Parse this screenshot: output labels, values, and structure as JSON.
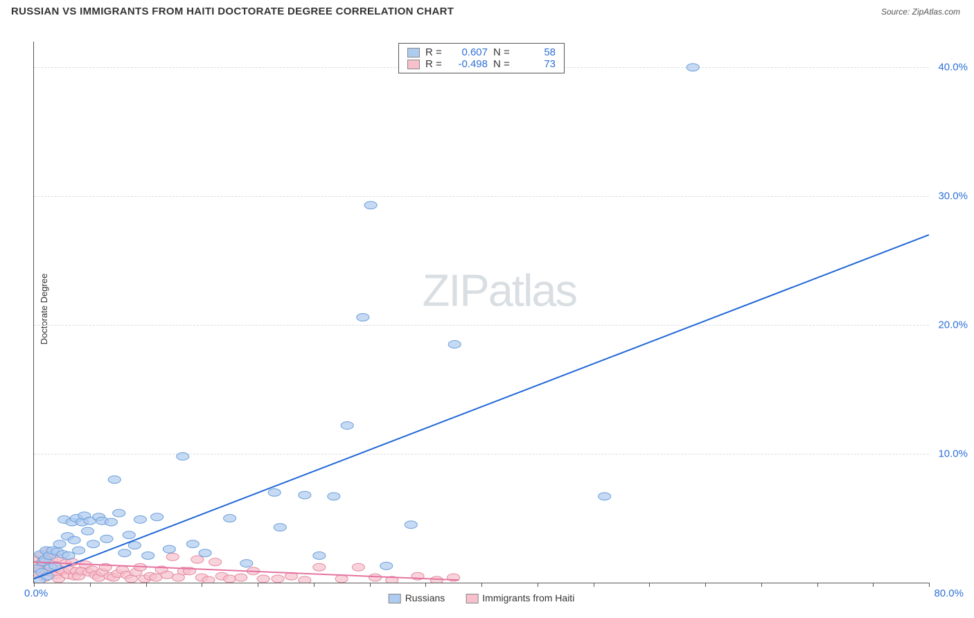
{
  "header": {
    "title": "RUSSIAN VS IMMIGRANTS FROM HAITI DOCTORATE DEGREE CORRELATION CHART",
    "source_prefix": "Source: ",
    "source_site": "ZipAtlas.com"
  },
  "axes": {
    "ylabel": "Doctorate Degree",
    "xlim": [
      0,
      80
    ],
    "ylim": [
      0,
      42
    ],
    "x_start_label": "0.0%",
    "x_end_label": "80.0%",
    "x_ticks": [
      0,
      5,
      10,
      15,
      20,
      25,
      30,
      35,
      40,
      45,
      50,
      55,
      60,
      65,
      70,
      75,
      80
    ],
    "y_gridlines": [
      {
        "val": 10,
        "label": "10.0%"
      },
      {
        "val": 20,
        "label": "20.0%"
      },
      {
        "val": 30,
        "label": "30.0%"
      },
      {
        "val": 40,
        "label": "40.0%"
      }
    ]
  },
  "watermark": {
    "zip": "ZIP",
    "atlas": "atlas"
  },
  "series": [
    {
      "name": "Russians",
      "color_fill": "#aecbf0",
      "color_stroke": "#6c9fd9",
      "trend_color": "#1f66d6",
      "R": "0.607",
      "N": "58",
      "trend": {
        "x1": 0,
        "y1": 0.3,
        "x2": 80,
        "y2": 27.0
      },
      "points": [
        [
          0.3,
          1.1
        ],
        [
          0.5,
          0.2
        ],
        [
          0.6,
          2.2
        ],
        [
          0.7,
          0.8
        ],
        [
          0.8,
          1.6
        ],
        [
          1.0,
          1.8
        ],
        [
          1.1,
          2.5
        ],
        [
          1.2,
          0.5
        ],
        [
          1.4,
          2.1
        ],
        [
          1.5,
          1.2
        ],
        [
          1.7,
          2.5
        ],
        [
          1.9,
          1.3
        ],
        [
          2.1,
          2.4
        ],
        [
          2.3,
          3.0
        ],
        [
          2.6,
          2.2
        ],
        [
          2.7,
          4.9
        ],
        [
          3.0,
          3.6
        ],
        [
          3.1,
          2.1
        ],
        [
          3.4,
          4.7
        ],
        [
          3.6,
          3.3
        ],
        [
          3.8,
          5.0
        ],
        [
          4.0,
          2.5
        ],
        [
          4.3,
          4.7
        ],
        [
          4.5,
          5.2
        ],
        [
          4.8,
          4.0
        ],
        [
          5.0,
          4.8
        ],
        [
          5.3,
          3.0
        ],
        [
          5.8,
          5.1
        ],
        [
          6.1,
          4.8
        ],
        [
          6.5,
          3.4
        ],
        [
          6.9,
          4.7
        ],
        [
          7.2,
          8.0
        ],
        [
          7.6,
          5.4
        ],
        [
          8.1,
          2.3
        ],
        [
          8.5,
          3.7
        ],
        [
          9.0,
          2.9
        ],
        [
          9.5,
          4.9
        ],
        [
          10.2,
          2.1
        ],
        [
          11.0,
          5.1
        ],
        [
          12.1,
          2.6
        ],
        [
          13.3,
          9.8
        ],
        [
          14.2,
          3.0
        ],
        [
          15.3,
          2.3
        ],
        [
          17.5,
          5.0
        ],
        [
          19.0,
          1.5
        ],
        [
          21.5,
          7.0
        ],
        [
          22.0,
          4.3
        ],
        [
          24.2,
          6.8
        ],
        [
          25.5,
          2.1
        ],
        [
          26.8,
          6.7
        ],
        [
          28.0,
          12.2
        ],
        [
          29.4,
          20.6
        ],
        [
          30.1,
          29.3
        ],
        [
          31.5,
          1.3
        ],
        [
          33.7,
          4.5
        ],
        [
          37.6,
          18.5
        ],
        [
          51.0,
          6.7
        ],
        [
          58.9,
          40.0
        ]
      ]
    },
    {
      "name": "Immigrants from Haiti",
      "color_fill": "#f6c1cc",
      "color_stroke": "#e38aa0",
      "trend_color": "#e573a0",
      "R": "-0.498",
      "N": "73",
      "trend": {
        "x1": 0,
        "y1": 1.6,
        "x2": 38,
        "y2": 0.2
      },
      "points": [
        [
          0.2,
          1.4
        ],
        [
          0.4,
          1.8
        ],
        [
          0.5,
          0.7
        ],
        [
          0.6,
          1.0
        ],
        [
          0.7,
          2.1
        ],
        [
          0.8,
          1.5
        ],
        [
          0.9,
          0.9
        ],
        [
          1.0,
          0.4
        ],
        [
          1.1,
          1.6
        ],
        [
          1.2,
          2.4
        ],
        [
          1.3,
          2.2
        ],
        [
          1.4,
          1.2
        ],
        [
          1.5,
          0.8
        ],
        [
          1.6,
          1.8
        ],
        [
          1.8,
          2.2
        ],
        [
          1.9,
          1.1
        ],
        [
          2.0,
          0.6
        ],
        [
          2.1,
          1.9
        ],
        [
          2.2,
          0.3
        ],
        [
          2.4,
          1.0
        ],
        [
          2.6,
          0.9
        ],
        [
          2.8,
          1.5
        ],
        [
          3.0,
          0.6
        ],
        [
          3.2,
          1.0
        ],
        [
          3.4,
          1.6
        ],
        [
          3.6,
          0.5
        ],
        [
          3.8,
          0.9
        ],
        [
          4.0,
          0.5
        ],
        [
          4.3,
          0.9
        ],
        [
          4.6,
          1.4
        ],
        [
          4.9,
          0.8
        ],
        [
          5.2,
          1.0
        ],
        [
          5.5,
          0.6
        ],
        [
          5.8,
          0.4
        ],
        [
          6.1,
          0.8
        ],
        [
          6.4,
          1.2
        ],
        [
          6.8,
          0.5
        ],
        [
          7.1,
          0.4
        ],
        [
          7.5,
          0.7
        ],
        [
          7.9,
          1.0
        ],
        [
          8.3,
          0.6
        ],
        [
          8.7,
          0.3
        ],
        [
          9.1,
          0.8
        ],
        [
          9.5,
          1.2
        ],
        [
          9.9,
          0.3
        ],
        [
          10.4,
          0.5
        ],
        [
          10.9,
          0.4
        ],
        [
          11.4,
          1.0
        ],
        [
          11.9,
          0.6
        ],
        [
          12.4,
          2.0
        ],
        [
          12.9,
          0.4
        ],
        [
          13.4,
          0.9
        ],
        [
          13.9,
          0.9
        ],
        [
          14.6,
          1.8
        ],
        [
          15.0,
          0.4
        ],
        [
          15.6,
          0.2
        ],
        [
          16.2,
          1.6
        ],
        [
          16.8,
          0.5
        ],
        [
          17.5,
          0.3
        ],
        [
          18.5,
          0.4
        ],
        [
          19.6,
          0.9
        ],
        [
          20.5,
          0.3
        ],
        [
          21.8,
          0.3
        ],
        [
          23.0,
          0.5
        ],
        [
          24.2,
          0.2
        ],
        [
          25.5,
          1.2
        ],
        [
          27.5,
          0.3
        ],
        [
          29.0,
          1.2
        ],
        [
          30.5,
          0.4
        ],
        [
          32.0,
          0.2
        ],
        [
          34.3,
          0.5
        ],
        [
          36.0,
          0.2
        ],
        [
          37.5,
          0.4
        ]
      ]
    }
  ],
  "legend_top_labels": {
    "R": "R =",
    "N": "N ="
  },
  "styling": {
    "marker_radius": 7,
    "marker_opacity": 0.7,
    "line_width": 2,
    "axis_color": "#555555",
    "grid_color": "#dcdcdc",
    "tick_label_color": "#2e6fd6",
    "tick_fontsize": 15,
    "title_fontsize": 15,
    "background": "#ffffff"
  }
}
